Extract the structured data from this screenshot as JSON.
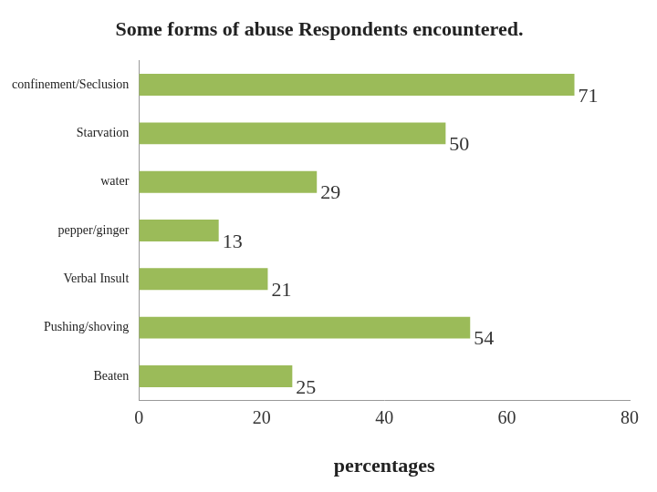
{
  "chart_data": {
    "type": "bar",
    "orientation": "horizontal",
    "title": "Some forms of abuse Respondents encountered.",
    "xlabel": "percentages",
    "categories": [
      "confinement/Seclusion",
      "Starvation",
      "water",
      "pepper/ginger",
      "Verbal Insult",
      "Pushing/shoving",
      "Beaten"
    ],
    "values": [
      71,
      50,
      29,
      13,
      21,
      54,
      25
    ],
    "color": "#9bbb59",
    "xlim": [
      0,
      80
    ],
    "xticks": [
      0,
      20,
      40,
      60,
      80
    ],
    "grid": false,
    "data_labels": true
  }
}
